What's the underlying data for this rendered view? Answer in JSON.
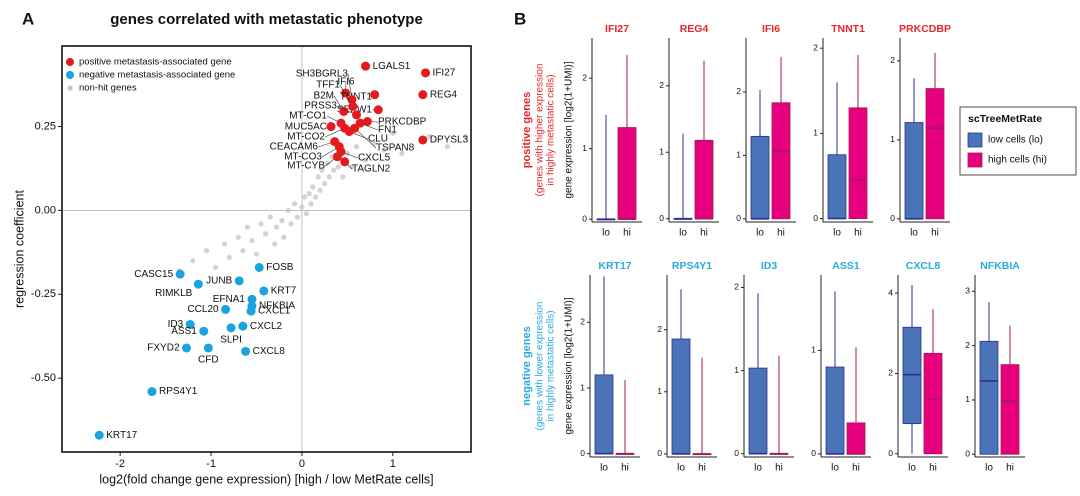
{
  "panel_labels": [
    "A",
    "B"
  ],
  "panel_b": {
    "rows": [
      {
        "label": "positive genes",
        "sublabel": [
          "(genes with higher expression",
          "in highly metastatic cells)"
        ],
        "color": "#e8262a",
        "ylabel": "gene expression [log2(1+UMI)]"
      },
      {
        "label": "negative genes",
        "sublabel": [
          "(genes with lower expression",
          "in highly metastatic cells)"
        ],
        "color": "#29abe2",
        "ylabel": "gene expression [log2(1+UMI)]"
      }
    ],
    "legend": {
      "title": "scTreeMetRate",
      "labels": [
        "low cells (lo)",
        "high cells (hi)"
      ],
      "colors": [
        "#4a73b8",
        "#e6007e"
      ],
      "strokes": [
        "#2e3192",
        "#a3195b"
      ]
    }
  },
  "chart_data": [
    {
      "type": "scatter",
      "title": "genes correlated with metastatic phenotype",
      "xlabel": "log2(fold change gene expression) [high / low MetRate cells]",
      "ylabel": "regression coefficient",
      "xlim": [
        -2.64,
        1.86
      ],
      "ylim": [
        -0.72,
        0.49
      ],
      "xticks": [
        -2,
        -1,
        0,
        1
      ],
      "yticks": [
        {
          "value": -0.5,
          "label": "-0.50"
        },
        -0.25,
        {
          "value": 0,
          "label": "0.00"
        },
        0.25
      ],
      "legend": "upper left",
      "series": [
        {
          "name": "positive metastasis-associated gene",
          "color": "#e41a1c",
          "labels": [
            "LGALS1",
            "IFI27",
            "REG4",
            "IFI6",
            "TNNT1",
            "SEPW1",
            "PRKCDBP",
            "DPYSL3",
            "SH3BGRL3",
            "TFF1",
            "B2M",
            "PRSS3",
            "MT-CO1",
            "MUC5AC",
            "MT-CO2",
            "FN1",
            "CLU",
            "TSPAN8",
            "CEACAM6",
            "MT-CO3",
            "MT-CYB",
            "CXCL5",
            "TAGLN2"
          ],
          "x": [
            0.7,
            1.36,
            1.33,
            0.48,
            0.8,
            0.84,
            0.72,
            1.33,
            0.55,
            0.56,
            0.46,
            0.6,
            0.43,
            0.32,
            0.47,
            0.64,
            0.52,
            0.58,
            0.36,
            0.41,
            0.39,
            0.43,
            0.47
          ],
          "y": [
            0.43,
            0.41,
            0.345,
            0.35,
            0.345,
            0.3,
            0.265,
            0.21,
            0.33,
            0.31,
            0.295,
            0.285,
            0.26,
            0.25,
            0.245,
            0.26,
            0.235,
            0.245,
            0.205,
            0.19,
            0.16,
            0.175,
            0.145
          ]
        },
        {
          "name": "negative metastasis-associated gene",
          "color": "#1ba3e0",
          "labels": [
            "FOSB",
            "CASC15",
            "JUNB",
            "RIMKLB",
            "KRT7",
            "EFNA1",
            "NFKBIA",
            "CXCL1",
            "CCL20",
            "ID3",
            "CXCL2",
            "SLPI",
            "ASS1",
            "FXYD2",
            "CFD",
            "CXCL8",
            "RPS4Y1",
            "KRT17"
          ],
          "x": [
            -0.47,
            -1.34,
            -0.69,
            -1.14,
            -0.42,
            -0.55,
            -0.55,
            -0.56,
            -0.84,
            -1.23,
            -0.65,
            -0.78,
            -1.08,
            -1.27,
            -1.03,
            -0.62,
            -1.65,
            -2.23
          ],
          "y": [
            -0.17,
            -0.19,
            -0.21,
            -0.22,
            -0.24,
            -0.265,
            -0.285,
            -0.3,
            -0.295,
            -0.34,
            -0.345,
            -0.35,
            -0.36,
            -0.41,
            -0.41,
            -0.42,
            -0.54,
            -0.67
          ]
        },
        {
          "name": "non-hit genes",
          "color": "#c8c8c8",
          "x": [
            -1.2,
            -1.05,
            -0.95,
            -0.85,
            -0.8,
            -0.7,
            -0.65,
            -0.6,
            -0.55,
            -0.5,
            -0.45,
            -0.4,
            -0.35,
            -0.3,
            -0.28,
            -0.22,
            -0.2,
            -0.15,
            -0.12,
            -0.08,
            -0.05,
            0.0,
            0.03,
            0.05,
            0.08,
            0.1,
            0.12,
            0.15,
            0.18,
            0.2,
            0.22,
            0.25,
            0.28,
            0.3,
            0.33,
            0.35,
            0.4,
            0.45,
            0.5,
            0.55,
            0.6,
            0.7,
            0.8,
            0.9,
            1.0,
            1.1,
            1.4,
            1.6,
            1.8,
            -1.35
          ],
          "y": [
            -0.15,
            -0.12,
            -0.17,
            -0.1,
            -0.14,
            -0.08,
            -0.12,
            -0.05,
            -0.09,
            -0.13,
            -0.04,
            -0.07,
            -0.02,
            -0.1,
            -0.05,
            -0.03,
            -0.08,
            0.0,
            -0.04,
            0.02,
            -0.02,
            0.01,
            0.04,
            -0.01,
            0.05,
            0.02,
            0.07,
            0.04,
            0.1,
            0.06,
            0.12,
            0.08,
            0.14,
            0.1,
            0.16,
            0.12,
            0.13,
            0.1,
            0.17,
            0.13,
            0.19,
            0.15,
            0.2,
            0.18,
            0.23,
            0.17,
            0.22,
            0.19,
            0.22,
            -0.18
          ]
        }
      ]
    },
    {
      "type": "box",
      "title": "IFI27",
      "title_color": "#e8262a",
      "categories": [
        "lo",
        "hi"
      ],
      "stats": [
        [
          0,
          0,
          0,
          0,
          1.48
        ],
        [
          0,
          0,
          0,
          1.3,
          2.33
        ]
      ],
      "ylim": [
        -0.04,
        2.57
      ],
      "yticks": [
        0,
        1,
        2
      ]
    },
    {
      "type": "box",
      "title": "REG4",
      "title_color": "#e8262a",
      "categories": [
        "lo",
        "hi"
      ],
      "stats": [
        [
          0,
          0,
          0,
          0,
          1.28
        ],
        [
          0,
          0,
          0,
          1.18,
          2.38
        ]
      ],
      "ylim": [
        -0.05,
        2.72
      ],
      "yticks": [
        0,
        1,
        2
      ]
    },
    {
      "type": "box",
      "title": "IFI6",
      "title_color": "#e8262a",
      "categories": [
        "lo",
        "hi"
      ],
      "stats": [
        [
          0,
          0,
          0,
          1.3,
          2.03
        ],
        [
          0,
          0,
          1.07,
          1.83,
          2.55
        ]
      ],
      "ylim": [
        -0.05,
        2.85
      ],
      "yticks": [
        0,
        1,
        2
      ]
    },
    {
      "type": "box",
      "title": "TNNT1",
      "title_color": "#e8262a",
      "categories": [
        "lo",
        "hi"
      ],
      "stats": [
        [
          0,
          0,
          0,
          0.75,
          1.6
        ],
        [
          0,
          0,
          0.45,
          1.3,
          1.92
        ]
      ],
      "ylim": [
        -0.04,
        2.12
      ],
      "yticks": [
        0,
        1,
        2
      ]
    },
    {
      "type": "box",
      "title": "PRKCDBP",
      "title_color": "#e8262a",
      "categories": [
        "lo",
        "hi"
      ],
      "stats": [
        [
          0,
          0,
          0,
          1.22,
          1.78
        ],
        [
          0,
          0,
          1.15,
          1.65,
          2.1
        ]
      ],
      "ylim": [
        -0.04,
        2.29
      ],
      "yticks": [
        0,
        1,
        2
      ]
    },
    {
      "type": "box",
      "title": "KRT17",
      "title_color": "#29abe2",
      "categories": [
        "lo",
        "hi"
      ],
      "stats": [
        [
          0,
          0,
          0,
          1.2,
          2.7
        ],
        [
          0,
          0,
          0,
          0,
          1.12
        ]
      ],
      "ylim": [
        -0.05,
        2.72
      ],
      "yticks": [
        0,
        1,
        2
      ]
    },
    {
      "type": "box",
      "title": "RPS4Y1",
      "title_color": "#29abe2",
      "categories": [
        "lo",
        "hi"
      ],
      "stats": [
        [
          0,
          0,
          0,
          1.85,
          2.65
        ],
        [
          0,
          0,
          0,
          0,
          1.55
        ]
      ],
      "ylim": [
        -0.05,
        2.88
      ],
      "yticks": [
        0,
        1,
        2
      ]
    },
    {
      "type": "box",
      "title": "ID3",
      "title_color": "#29abe2",
      "categories": [
        "lo",
        "hi"
      ],
      "stats": [
        [
          0,
          0,
          0,
          1.03,
          1.93
        ],
        [
          0,
          0,
          0,
          0,
          1.18
        ]
      ],
      "ylim": [
        -0.04,
        2.15
      ],
      "yticks": [
        0,
        1,
        2
      ]
    },
    {
      "type": "box",
      "title": "ASS1",
      "title_color": "#29abe2",
      "categories": [
        "lo",
        "hi"
      ],
      "stats": [
        [
          0,
          0,
          0,
          0.84,
          1.57
        ],
        [
          0,
          0,
          0,
          0.3,
          1.03
        ]
      ],
      "ylim": [
        -0.03,
        1.73
      ],
      "yticks": [
        0,
        1
      ]
    },
    {
      "type": "box",
      "title": "CXCL8",
      "title_color": "#29abe2",
      "categories": [
        "lo",
        "hi"
      ],
      "stats": [
        [
          0,
          0.75,
          1.97,
          3.15,
          4.2
        ],
        [
          0,
          0,
          1.35,
          2.5,
          3.6
        ]
      ],
      "ylim": [
        -0.08,
        4.45
      ],
      "yticks": [
        0,
        2,
        4
      ]
    },
    {
      "type": "box",
      "title": "NFKBIA",
      "title_color": "#29abe2",
      "categories": [
        "lo",
        "hi"
      ],
      "stats": [
        [
          0,
          0,
          1.35,
          2.08,
          2.8
        ],
        [
          0,
          0,
          0.98,
          1.65,
          2.37
        ]
      ],
      "ylim": [
        -0.05,
        3.3
      ],
      "yticks": [
        0,
        1,
        2,
        3
      ]
    }
  ]
}
